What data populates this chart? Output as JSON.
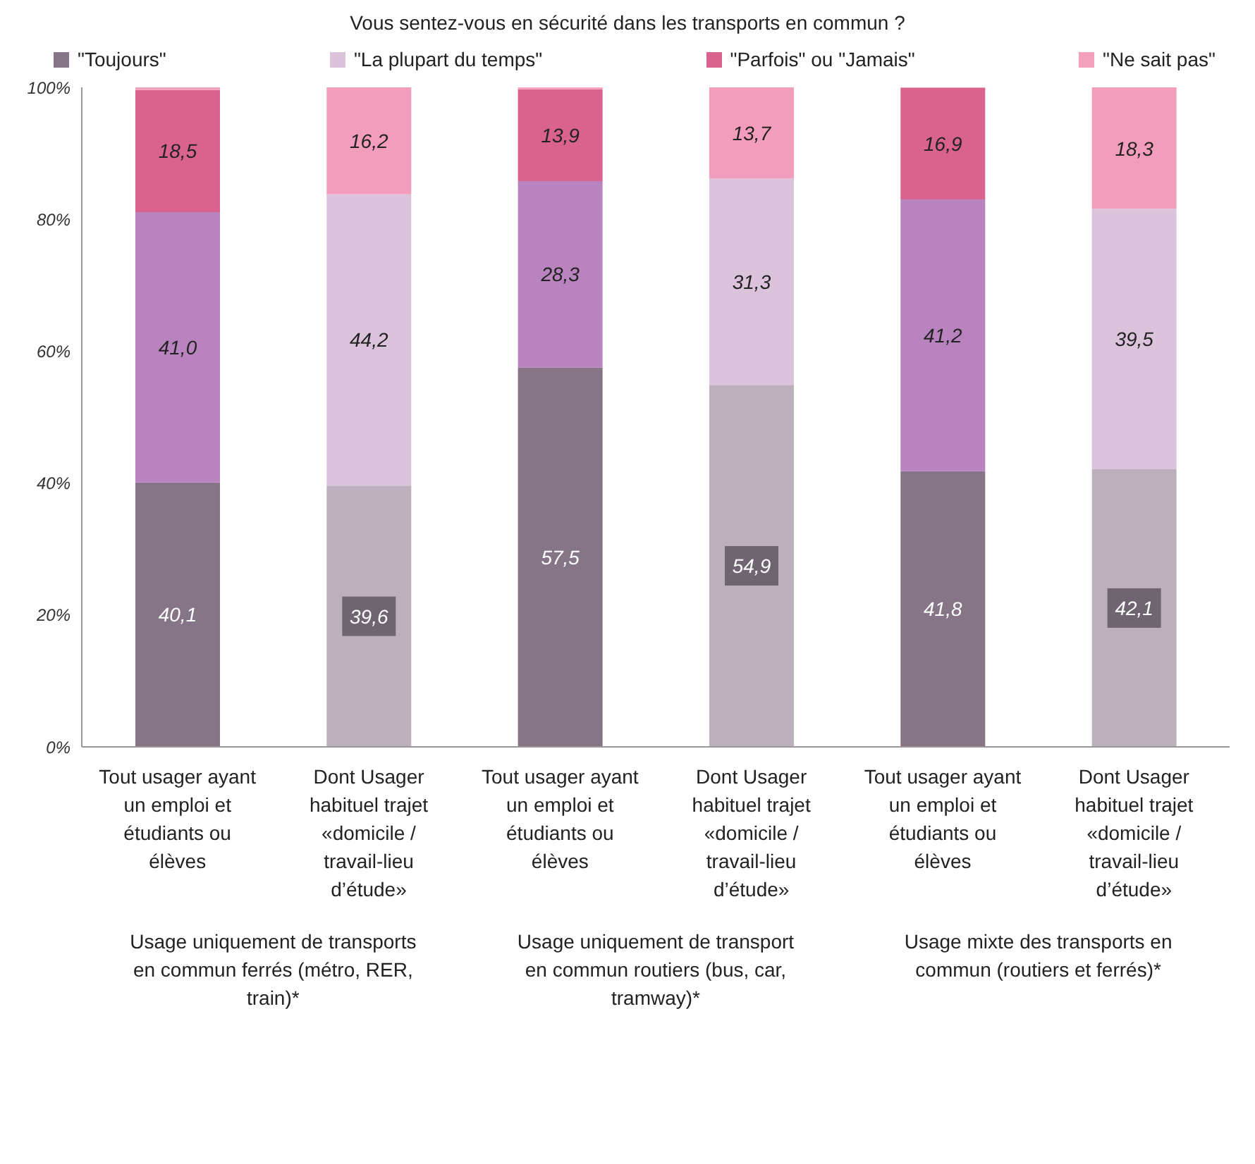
{
  "chart_data": {
    "type": "bar",
    "stacked": true,
    "title": "Vous sentez-vous en sécurité dans les transports en commun ?",
    "categories": [
      "Tout usager ayant un emploi et étudiants ou élèves",
      "Dont Usager habituel trajet «domicile / travail-lieu d’étude»",
      "Tout usager ayant un emploi et étudiants ou élèves",
      "Dont Usager habituel trajet «domicile / travail-lieu d’étude»",
      "Tout usager ayant un emploi et étudiants ou élèves",
      "Dont Usager habituel trajet «domicile / travail-lieu d’étude»"
    ],
    "series": [
      {
        "name": "\"Toujours\"",
        "color": "#857587",
        "colors": [
          "#857587",
          "#bcb0bd",
          "#857587",
          "#bcb0bd",
          "#857587",
          "#bcb0bd"
        ],
        "values": [
          40.1,
          39.6,
          57.5,
          54.9,
          41.8,
          42.1
        ],
        "value_labels": [
          "40,1",
          "39,6",
          "57,5",
          "54,9",
          "41,8",
          "42,1"
        ]
      },
      {
        "name": "\"La plupart du temps\"",
        "color": "#dcc3dc",
        "colors": [
          "#b883bf",
          "#dcc3dc",
          "#b883bf",
          "#dcc3dc",
          "#b883bf",
          "#dcc3dc"
        ],
        "values": [
          41.0,
          44.2,
          28.3,
          31.3,
          41.2,
          39.5
        ],
        "value_labels": [
          "41,0",
          "44,2",
          "28,3",
          "31,3",
          "41,2",
          "39,5"
        ]
      },
      {
        "name": "\"Parfois\" ou \"Jamais\"",
        "color": "#d9628f",
        "colors": [
          "#d9628f",
          "#f39dbd",
          "#d9628f",
          "#f39dbd",
          "#d9628f",
          "#f39dbd"
        ],
        "values": [
          18.5,
          16.2,
          13.9,
          13.7,
          16.9,
          18.3
        ],
        "value_labels": [
          "18,5",
          "16,2",
          "13,9",
          "13,7",
          "16,9",
          "18,3"
        ]
      },
      {
        "name": "\"Ne sait pas\"",
        "color": "#f3a0bd",
        "colors": [
          "#f3a0bd",
          "#f3a0bd",
          "#f3a0bd",
          "#f3a0bd",
          "#f3a0bd",
          "#f3a0bd"
        ],
        "values": [
          0.4,
          0,
          0.3,
          0.1,
          0.1,
          0.1
        ]
      }
    ],
    "ylim": [
      0,
      100
    ],
    "yticks": [
      {
        "value": 0,
        "label": "0%"
      },
      {
        "value": 20,
        "label": "20%"
      },
      {
        "value": 40,
        "label": "40%"
      },
      {
        "value": 60,
        "label": "60%"
      },
      {
        "value": 80,
        "label": "80%"
      },
      {
        "value": 100,
        "label": "100%"
      }
    ],
    "legend": "top",
    "annotations": [
      "Usage uniquement de transports en commun ferrés (métro, RER, train)*",
      "Usage uniquement de transport en commun routiers (bus, car, tramway)*",
      "Usage mixte des transports en commun (routiers et ferrés)*"
    ]
  }
}
